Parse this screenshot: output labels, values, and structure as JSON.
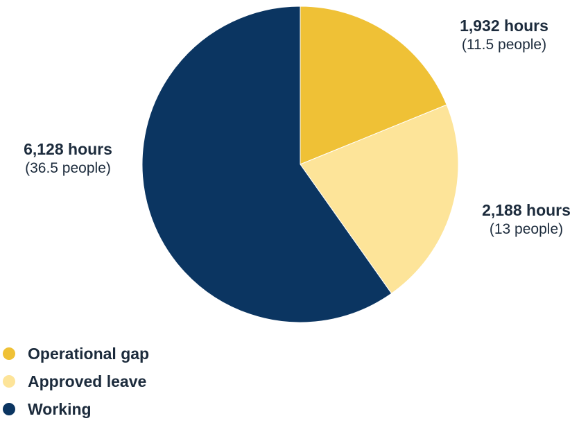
{
  "chart_data": {
    "type": "pie",
    "slices": [
      {
        "label": "Operational gap",
        "value": 1932,
        "hours_text": "1,932 hours",
        "people_text": "(11.5 people)",
        "color": "#efc136"
      },
      {
        "label": "Approved leave",
        "value": 2188,
        "hours_text": "2,188 hours",
        "people_text": "(13 people)",
        "color": "#fde499"
      },
      {
        "label": "Working",
        "value": 6128,
        "hours_text": "6,128 hours",
        "people_text": "(36.5 people)",
        "color": "#0b3561"
      }
    ],
    "legend_placement": "bottom-left"
  }
}
